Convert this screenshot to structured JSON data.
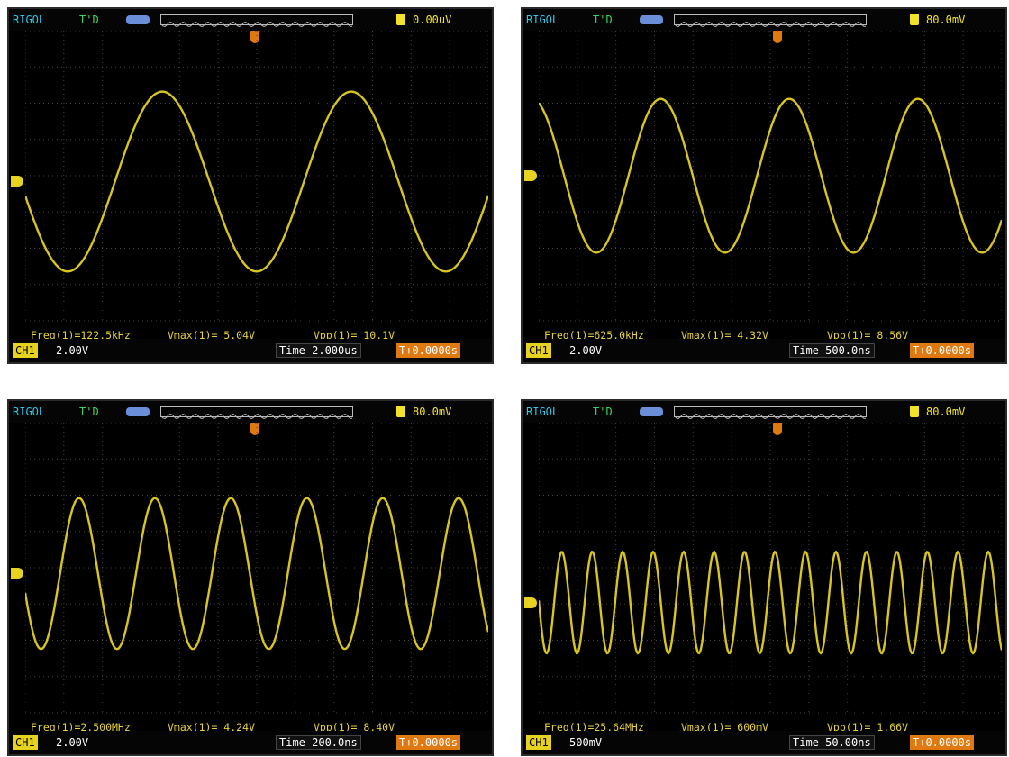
{
  "screens": [
    {
      "brand": "RIGOL",
      "status": "T'D",
      "trigger_level": "0.00uV",
      "measurements": [
        "Freq(1)=122.5kHz",
        "Vmax(1)= 5.04V",
        "Vpp(1)= 10.1V"
      ],
      "channel": "CH1",
      "channel_scale": "2.00V",
      "time_base": "Time 2.000us",
      "trigger_offset": "T+0.0000s"
    },
    {
      "brand": "RIGOL",
      "status": "T'D",
      "trigger_level": "80.0mV",
      "measurements": [
        "Freq(1)=625.0kHz",
        "Vmax(1)= 4.32V",
        "Vpp(1)= 8.56V"
      ],
      "channel": "CH1",
      "channel_scale": "2.00V",
      "time_base": "Time 500.0ns",
      "trigger_offset": "T+0.0000s"
    },
    {
      "brand": "RIGOL",
      "status": "T'D",
      "trigger_level": "80.0mV",
      "measurements": [
        "Freq(1)=2.500MHz",
        "Vmax(1)= 4.24V",
        "Vpp(1)= 8.40V"
      ],
      "channel": "CH1",
      "channel_scale": "2.00V",
      "time_base": "Time 200.0ns",
      "trigger_offset": "T+0.0000s"
    },
    {
      "brand": "RIGOL",
      "status": "T'D",
      "trigger_level": "80.0mV",
      "measurements": [
        "Freq(1)=25.64MHz",
        "Vmax(1)= 600mV",
        "Vpp(1)= 1.66V"
      ],
      "channel": "CH1",
      "channel_scale": "500mV",
      "time_base": "Time 50.00ns",
      "trigger_offset": "T+0.0000s"
    }
  ]
}
